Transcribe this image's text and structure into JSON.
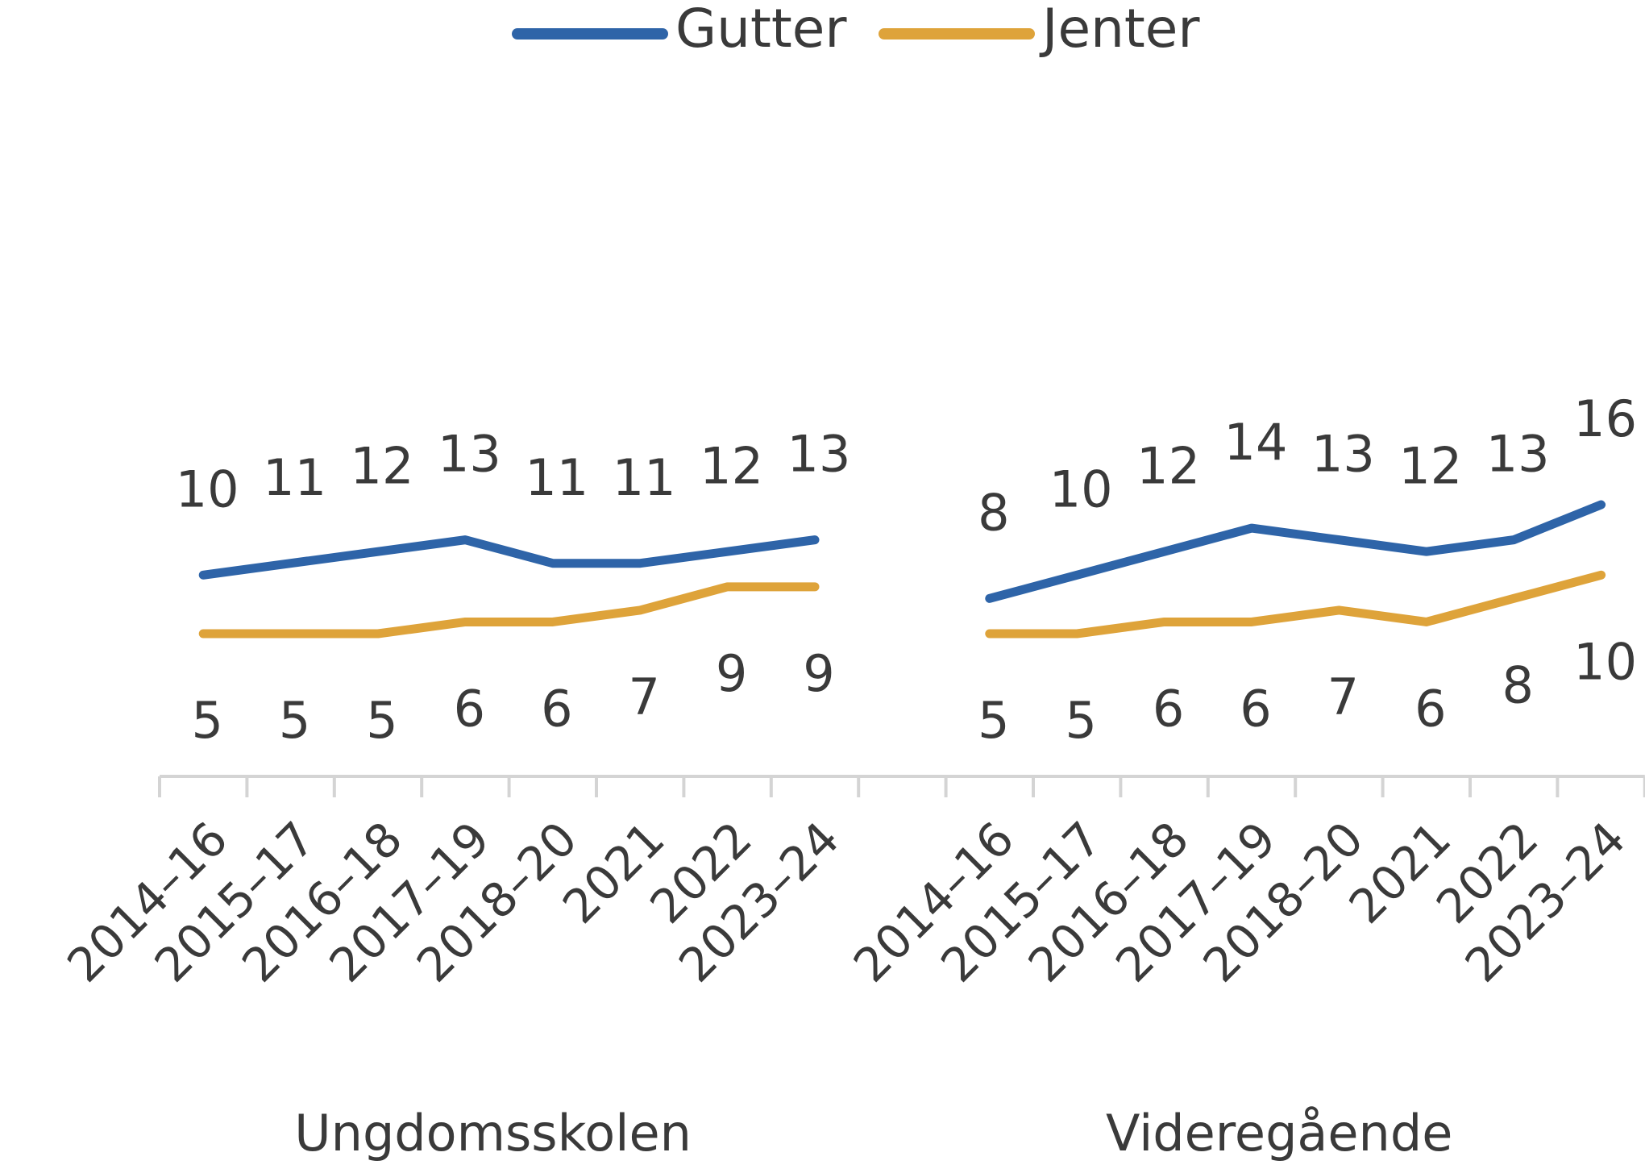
{
  "chart_data": {
    "type": "line",
    "categories": [
      "2014–16",
      "2015–17",
      "2016–18",
      "2017–19",
      "2018–20",
      "2021",
      "2022",
      "2023–24",
      null,
      "2014–16",
      "2015–17",
      "2016–18",
      "2017–19",
      "2018–20",
      "2021",
      "2022",
      "2023–24"
    ],
    "group_labels": [
      "Ungdomsskolen",
      "Videregående"
    ],
    "series": [
      {
        "name": "Gutter",
        "color": "#2e64a8",
        "values": [
          10,
          11,
          12,
          13,
          11,
          11,
          12,
          13,
          null,
          8,
          10,
          12,
          14,
          13,
          12,
          13,
          16
        ]
      },
      {
        "name": "Jenter",
        "color": "#dea33a",
        "values": [
          5,
          5,
          5,
          6,
          6,
          7,
          9,
          9,
          null,
          5,
          5,
          6,
          6,
          7,
          6,
          8,
          10
        ]
      }
    ],
    "legend": "top"
  }
}
